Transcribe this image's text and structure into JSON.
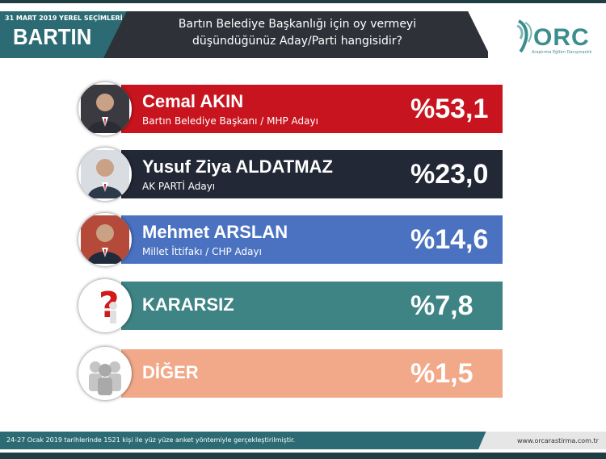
{
  "header": {
    "election_date": "31 MART 2019 YEREL SEÇİMLERİ",
    "city": "BARTIN",
    "question_line1": "Bartın Belediye Başkanlığı için oy vermeyi",
    "question_line2": "düşündüğünüz Aday/Parti hangisidir?",
    "logo_text": "ORC",
    "logo_subtitle": "Araştırma Eğitim Danışmanlık"
  },
  "chart_data": {
    "type": "bar",
    "orientation": "horizontal",
    "categories": [
      "Cemal AKIN",
      "Yusuf Ziya ALDATMAZ",
      "Mehmet ARSLAN",
      "KARARSIZ",
      "DİĞER"
    ],
    "values": [
      53.1,
      23.0,
      14.6,
      7.8,
      1.5
    ],
    "value_labels": [
      "%53,1",
      "%23,0",
      "%14,6",
      "%7,8",
      "%1,5"
    ],
    "sublabels": [
      "Bartın Belediye Başkanı / MHP Adayı",
      "AK PARTİ Adayı",
      "Millet İttifakı / CHP Adayı",
      "",
      ""
    ],
    "colors": [
      "#c8141e",
      "#232836",
      "#4a72c0",
      "#3e8484",
      "#f1a98a"
    ],
    "icons": [
      "portrait-icon",
      "portrait-icon",
      "portrait-icon",
      "question-mark-icon",
      "people-silhouette-icon"
    ],
    "title": "Bartın Belediye Başkanlığı için oy vermeyi düşündüğünüz Aday/Parti hangisidir?"
  },
  "footer": {
    "note": "24-27 Ocak 2019 tarihlerinde 1521 kişi ile yüz yüze anket yöntemiyle gerçekleştirilmiştir.",
    "url": "www.orcarastirma.com.tr"
  }
}
